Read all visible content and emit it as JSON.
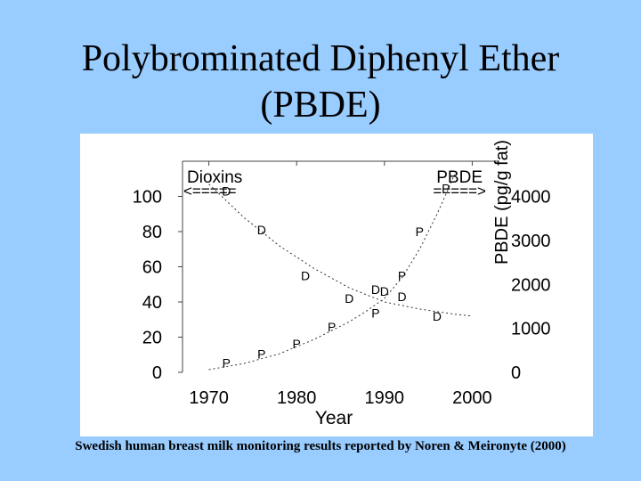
{
  "slide": {
    "title_line1": "Polybrominated Diphenyl Ether",
    "title_line2": "(PBDE)",
    "caption": "Swedish human breast milk monitoring results reported by Noren & Meironyte (2000)"
  },
  "chart_data": {
    "type": "scatter",
    "xlabel": "Year",
    "x_ticks": [
      1970,
      1980,
      1990,
      2000
    ],
    "xlim": [
      1967,
      2003
    ],
    "y_left": {
      "ticks": [
        0,
        20,
        40,
        60,
        80,
        100
      ],
      "ylim": [
        0,
        120
      ]
    },
    "y_right": {
      "label": "PBDE (pg/g fat)",
      "ticks": [
        0,
        1000,
        2000,
        3000,
        4000
      ],
      "ylim": [
        0,
        4800
      ]
    },
    "series": [
      {
        "name": "Dioxins",
        "marker": "D",
        "axis": "left",
        "arrow_label": "<=====",
        "x": [
          1972,
          1976,
          1981,
          1986,
          1989,
          1990,
          1992,
          1996
        ],
        "y": [
          103,
          81,
          55,
          42,
          47,
          46,
          43,
          32
        ],
        "trend_x": [
          1970,
          1974,
          1978,
          1982,
          1986,
          1990,
          1994,
          1998,
          2000
        ],
        "trend_y": [
          107,
          88,
          72,
          59,
          48,
          40,
          36,
          33,
          32
        ]
      },
      {
        "name": "PBDE",
        "marker": "P",
        "axis": "right",
        "arrow_label": "=====>",
        "x": [
          1972,
          1976,
          1980,
          1984,
          1989,
          1992,
          1994,
          1997
        ],
        "y": [
          210,
          420,
          650,
          1030,
          1350,
          2200,
          3200,
          4180
        ],
        "trend_x": [
          1970,
          1974,
          1978,
          1982,
          1986,
          1988,
          1990,
          1992,
          1994,
          1996,
          1998
        ],
        "trend_y": [
          60,
          200,
          420,
          750,
          1150,
          1400,
          1680,
          2150,
          2800,
          3600,
          4500
        ]
      }
    ],
    "grid": false
  }
}
